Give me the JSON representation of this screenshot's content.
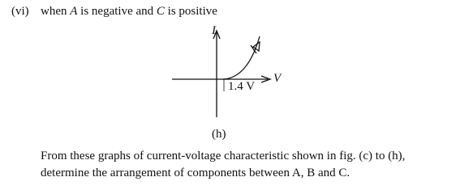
{
  "heading": {
    "number": "(vi)",
    "parts": [
      "when ",
      "A",
      " is negative and ",
      "C",
      " is positive"
    ]
  },
  "figure": {
    "y_axis_label": "I",
    "x_axis_label": "V",
    "threshold_label": "1.4 V",
    "caption": "(h)"
  },
  "paragraph": {
    "lines": [
      "From these graphs of current-voltage characteristic shown in fig. (c) to (h),",
      "determine the arrangement of components between A, B and C."
    ]
  }
}
